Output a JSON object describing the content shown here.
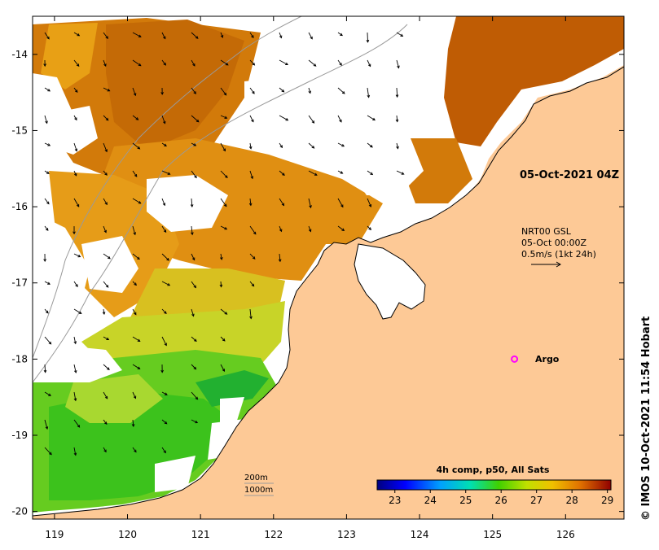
{
  "chart_data": {
    "type": "map",
    "lon_ticks": [
      119,
      120,
      121,
      122,
      123,
      124,
      125,
      126
    ],
    "lat_ticks": [
      -14,
      -15,
      -16,
      -17,
      -18,
      -19,
      -20
    ],
    "lon_range": [
      118.7,
      126.8
    ],
    "lat_range": [
      -20.1,
      -13.5
    ],
    "timestamp": "05-Oct-2021 04Z",
    "current_info": {
      "source": "NRT00 GSL",
      "time": "05-Oct 00:00Z",
      "scale": "0.5m/s (1kt 24h)"
    },
    "argo": {
      "label": "Argo",
      "lon": 125.3,
      "lat": -18.0
    },
    "isobaths": [
      "200m",
      "1000m"
    ],
    "colorbar": {
      "title": "4h comp, p50, All Sats",
      "ticks": [
        23,
        24,
        25,
        26,
        27,
        28,
        29
      ],
      "range": [
        22.5,
        29.1
      ]
    },
    "credit": "© IMOS 10-Oct-2021 11:54 Hobart"
  },
  "colors": {
    "land": "#fdc996",
    "cloud": "#ffffff",
    "argo": "#ff00ff"
  }
}
